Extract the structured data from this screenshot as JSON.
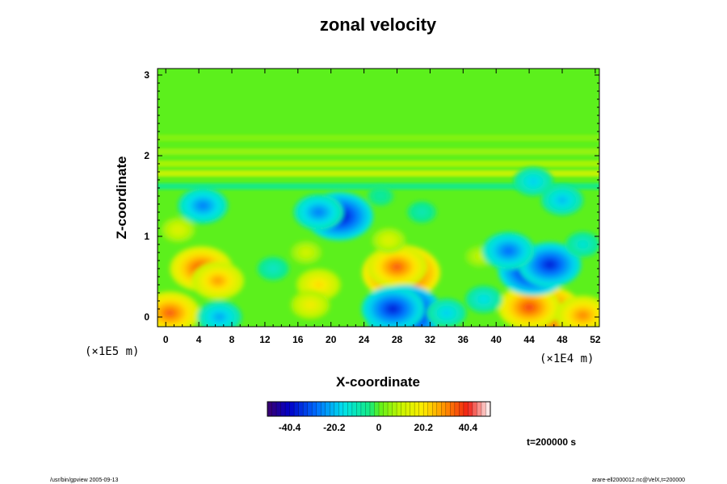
{
  "chart_data": {
    "type": "heatmap",
    "title": "zonal velocity",
    "xlabel": "X-coordinate",
    "ylabel": "Z-coordinate",
    "x_ticks": [
      "0",
      "4",
      "8",
      "12",
      "16",
      "20",
      "24",
      "28",
      "32",
      "36",
      "40",
      "44",
      "48",
      "52"
    ],
    "y_ticks": [
      "0",
      "1",
      "2",
      "3"
    ],
    "x_scale_label": "(×1E4 m)",
    "y_scale_label": "(×1E5 m)",
    "xlim": [
      -1,
      52.5
    ],
    "ylim": [
      -0.12,
      3.08
    ],
    "grid": false,
    "colorbar": {
      "ticks": [
        "-40.4",
        "-20.2",
        "0",
        "20.2",
        "40.4"
      ],
      "range": [
        -50.5,
        50.5
      ],
      "placement": "bottom"
    },
    "blobs": [
      {
        "x": 28.5,
        "z": 0.55,
        "value": 48
      },
      {
        "x": 28.0,
        "z": 0.62,
        "value": 34
      },
      {
        "x": 46.0,
        "z": 0.05,
        "value": 46
      },
      {
        "x": 44.0,
        "z": 0.12,
        "value": 36
      },
      {
        "x": 50.5,
        "z": 0.02,
        "value": 30
      },
      {
        "x": 4.3,
        "z": 0.6,
        "value": 36
      },
      {
        "x": 6.3,
        "z": 0.45,
        "value": 28
      },
      {
        "x": 0.5,
        "z": 0.05,
        "value": 34
      },
      {
        "x": 27.0,
        "z": 0.95,
        "value": 14
      },
      {
        "x": 17.0,
        "z": 0.8,
        "value": 12
      },
      {
        "x": 38.0,
        "z": 0.75,
        "value": 10
      },
      {
        "x": 18.5,
        "z": 0.4,
        "value": 22
      },
      {
        "x": 17.5,
        "z": 0.15,
        "value": 18
      },
      {
        "x": 1.5,
        "z": 1.08,
        "value": 14
      },
      {
        "x": 28.8,
        "z": 0.05,
        "value": -48
      },
      {
        "x": 27.5,
        "z": 0.1,
        "value": -36
      },
      {
        "x": 44.5,
        "z": 0.58,
        "value": -42
      },
      {
        "x": 46.5,
        "z": 0.65,
        "value": -36
      },
      {
        "x": 41.5,
        "z": 0.82,
        "value": -28
      },
      {
        "x": 21.0,
        "z": 1.25,
        "value": -40
      },
      {
        "x": 18.5,
        "z": 1.3,
        "value": -26
      },
      {
        "x": 4.5,
        "z": 1.38,
        "value": -26
      },
      {
        "x": 48.0,
        "z": 1.45,
        "value": -20
      },
      {
        "x": 44.5,
        "z": 1.68,
        "value": -18
      },
      {
        "x": 6.5,
        "z": 0.0,
        "value": -22
      },
      {
        "x": 34.0,
        "z": 0.05,
        "value": -18
      },
      {
        "x": 38.5,
        "z": 0.22,
        "value": -16
      },
      {
        "x": 13.0,
        "z": 0.6,
        "value": -12
      },
      {
        "x": 31.0,
        "z": 1.3,
        "value": -10
      },
      {
        "x": 26.0,
        "z": 1.5,
        "value": -8
      },
      {
        "x": 50.5,
        "z": 0.9,
        "value": -14
      }
    ],
    "bands": [
      {
        "z": 1.78,
        "value": 12
      },
      {
        "z": 1.9,
        "value": 8
      },
      {
        "z": 2.05,
        "value": 6
      },
      {
        "z": 2.22,
        "value": 4
      },
      {
        "z": 1.62,
        "value": -6
      }
    ]
  },
  "footer_left": "/usr/bin/gpview 2005-09-13",
  "footer_right": "arare-ell2000012.nc@VelX,t=200000",
  "time_label": "t=200000 s"
}
